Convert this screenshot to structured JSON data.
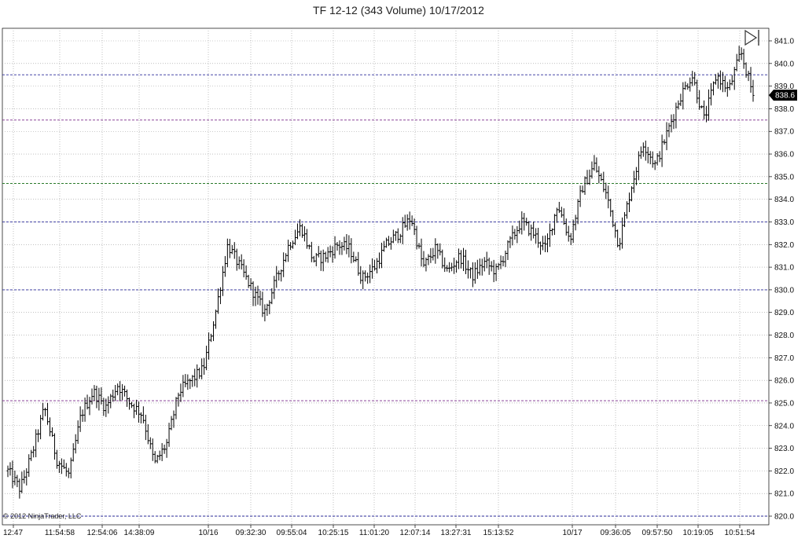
{
  "chart_data": {
    "type": "ohlc-bar",
    "title": "TF 12-12 (343 Volume)  10/17/2012",
    "copyright": "© 2012 NinjaTrader, LLC",
    "ylim": [
      820.0,
      841.5
    ],
    "y_ticks": [
      "841.0",
      "840.0",
      "839.0",
      "838.0",
      "837.0",
      "836.0",
      "835.0",
      "834.0",
      "833.0",
      "832.0",
      "831.0",
      "830.0",
      "829.0",
      "828.0",
      "827.0",
      "826.0",
      "825.0",
      "824.0",
      "823.0",
      "822.0",
      "821.0",
      "820.0"
    ],
    "x_ticks": [
      "12:47",
      "11:54:58",
      "12:54:06",
      "14:38:09",
      "10/16",
      "09:32:30",
      "09:55:04",
      "10:25:15",
      "11:01:20",
      "12:07:14",
      "13:27:31",
      "15:13:52",
      "10/17",
      "09:36:05",
      "09:57:50",
      "10:19:05",
      "10:51:54"
    ],
    "last_price": "838.6",
    "horizontal_lines": [
      {
        "value": 839.5,
        "color": "#2a2a9a"
      },
      {
        "value": 837.5,
        "color": "#7a2a8a"
      },
      {
        "value": 834.7,
        "color": "#2a7a2a"
      },
      {
        "value": 833.0,
        "color": "#2a2a9a"
      },
      {
        "value": 830.0,
        "color": "#2a2a9a"
      },
      {
        "value": 825.1,
        "color": "#7a2a8a"
      },
      {
        "value": 820.0,
        "color": "#2a2a9a"
      }
    ],
    "path_anchors": [
      822.0,
      821.2,
      822.8,
      824.8,
      822.5,
      821.8,
      824.5,
      825.5,
      824.8,
      825.8,
      825.0,
      824.5,
      822.3,
      823.2,
      825.5,
      826.0,
      826.5,
      829.0,
      832.0,
      831.0,
      830.0,
      829.0,
      830.5,
      832.0,
      832.8,
      831.3,
      831.5,
      832.0,
      831.8,
      830.5,
      831.0,
      832.0,
      832.5,
      833.2,
      831.0,
      831.8,
      830.8,
      831.5,
      830.6,
      831.2,
      830.8,
      832.0,
      833.0,
      832.5,
      831.8,
      833.8,
      832.2,
      834.5,
      835.5,
      834.2,
      832.0,
      834.5,
      836.5,
      835.5,
      837.0,
      838.5,
      839.5,
      837.5,
      839.5,
      838.8,
      840.5,
      838.6
    ]
  }
}
